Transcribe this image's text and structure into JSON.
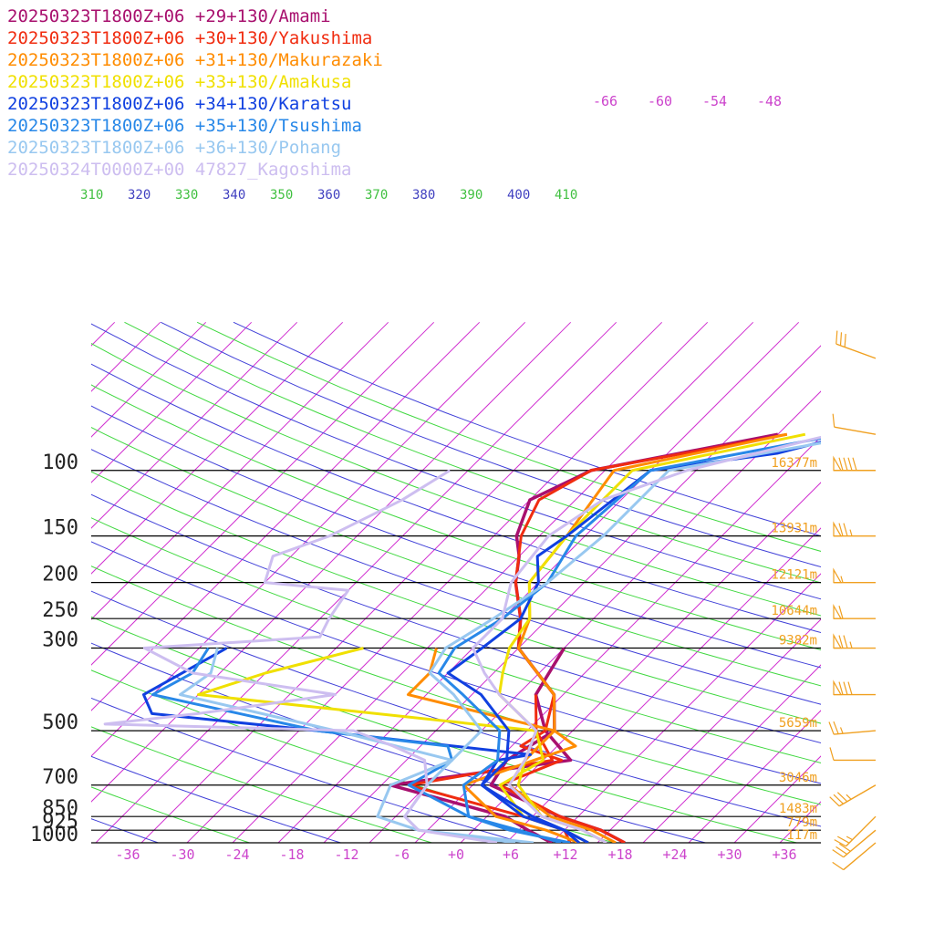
{
  "chart_data": {
    "type": "line",
    "title": "",
    "legend": [
      {
        "text": "20250323T1800Z+06 +29+130/Amami",
        "color": "#a8106e"
      },
      {
        "text": "20250323T1800Z+06 +30+130/Yakushima",
        "color": "#f02c10"
      },
      {
        "text": "20250323T1800Z+06 +31+130/Makurazaki",
        "color": "#ff8c00"
      },
      {
        "text": "20250323T1800Z+06 +33+130/Amakusa",
        "color": "#f0e000"
      },
      {
        "text": "20250323T1800Z+06 +34+130/Karatsu",
        "color": "#1040e0"
      },
      {
        "text": "20250323T1800Z+06 +35+130/Tsushima",
        "color": "#2888e8"
      },
      {
        "text": "20250323T1800Z+06 +36+130/Pohang",
        "color": "#98c8f0"
      },
      {
        "text": "20250324T0000Z+00 47827_Kagoshima",
        "color": "#cdbef0"
      }
    ],
    "pressure_ticks": [
      {
        "label": "100",
        "p": 100
      },
      {
        "label": "150",
        "p": 150
      },
      {
        "label": "200",
        "p": 200
      },
      {
        "label": "250",
        "p": 250
      },
      {
        "label": "300",
        "p": 300
      },
      {
        "label": "500",
        "p": 500
      },
      {
        "label": "700",
        "p": 700
      },
      {
        "label": "850",
        "p": 850
      },
      {
        "label": "925",
        "p": 925
      },
      {
        "label": "1000",
        "p": 1000
      }
    ],
    "temperature_ticks": [
      "-36",
      "-30",
      "-24",
      "-18",
      "-12",
      "-6",
      "+0",
      "+6",
      "+12",
      "+18",
      "+24",
      "+30",
      "+36"
    ],
    "theta_ticks": [
      {
        "label": "310",
        "color": "#40c040"
      },
      {
        "label": "320",
        "color": "#4040c0"
      },
      {
        "label": "330",
        "color": "#40c040"
      },
      {
        "label": "340",
        "color": "#4040c0"
      },
      {
        "label": "350",
        "color": "#40c040"
      },
      {
        "label": "360",
        "color": "#4040c0"
      },
      {
        "label": "370",
        "color": "#40c040"
      },
      {
        "label": "380",
        "color": "#4040c0"
      },
      {
        "label": "390",
        "color": "#40c040"
      },
      {
        "label": "400",
        "color": "#4040c0"
      },
      {
        "label": "410",
        "color": "#40c040"
      }
    ],
    "upper_temp_labels": [
      "-66",
      "-60",
      "-54",
      "-48"
    ],
    "height_labels": [
      {
        "label": "16377m",
        "p": 100
      },
      {
        "label": "13931m",
        "p": 150
      },
      {
        "label": "12121m",
        "p": 200
      },
      {
        "label": "10644m",
        "p": 250
      },
      {
        "label": "9382m",
        "p": 300
      },
      {
        "label": "5659m",
        "p": 500
      },
      {
        "label": "3046m",
        "p": 700
      },
      {
        "label": "1483m",
        "p": 850
      },
      {
        "label": "779m",
        "p": 925
      },
      {
        "label": "117m",
        "p": 1000
      }
    ],
    "series": [
      {
        "name": "20250323T1800Z+06 +29+130/Amami",
        "color": "#a8106e",
        "width": 3.5,
        "temperature": [
          [
            80,
            -10
          ],
          [
            100,
            -26.5
          ],
          [
            120,
            -30
          ],
          [
            150,
            -27.5
          ],
          [
            170,
            -25
          ],
          [
            200,
            -22.5
          ],
          [
            250,
            -18
          ],
          [
            300,
            -15
          ],
          [
            400,
            -6
          ],
          [
            500,
            -2
          ],
          [
            600,
            -4
          ],
          [
            700,
            -3
          ],
          [
            850,
            8
          ],
          [
            925,
            14
          ],
          [
            1000,
            18
          ]
        ],
        "dewpoint": [
          [
            300,
            -10
          ],
          [
            400,
            -8
          ],
          [
            500,
            -3
          ],
          [
            600,
            3
          ],
          [
            700,
            -14
          ],
          [
            800,
            -3
          ],
          [
            850,
            2
          ],
          [
            925,
            6
          ],
          [
            1000,
            10
          ]
        ]
      },
      {
        "name": "20250323T1800Z+06 +30+130/Yakushima",
        "color": "#f02c10",
        "width": 3,
        "temperature": [
          [
            80,
            -9
          ],
          [
            100,
            -26.5
          ],
          [
            120,
            -29
          ],
          [
            150,
            -27
          ],
          [
            200,
            -22.5
          ],
          [
            250,
            -18
          ],
          [
            300,
            -15
          ],
          [
            400,
            -6
          ],
          [
            500,
            -3
          ],
          [
            550,
            -4
          ],
          [
            600,
            2
          ],
          [
            700,
            -2
          ],
          [
            850,
            8
          ],
          [
            925,
            14
          ],
          [
            1000,
            18
          ]
        ],
        "dewpoint": [
          [
            400,
            -8
          ],
          [
            500,
            -4
          ],
          [
            600,
            1
          ],
          [
            700,
            -12
          ],
          [
            800,
            -1
          ],
          [
            850,
            4
          ],
          [
            925,
            10
          ],
          [
            1000,
            12
          ]
        ]
      },
      {
        "name": "20250323T1800Z+06 +31+130/Makurazaki",
        "color": "#ff8c00",
        "width": 3,
        "temperature": [
          [
            80,
            -9
          ],
          [
            100,
            -24
          ],
          [
            150,
            -22
          ],
          [
            200,
            -21
          ],
          [
            250,
            -17
          ],
          [
            300,
            -15
          ],
          [
            400,
            -6
          ],
          [
            500,
            -2
          ],
          [
            600,
            -2
          ],
          [
            700,
            -1
          ],
          [
            850,
            7
          ],
          [
            925,
            13
          ],
          [
            1000,
            17
          ]
        ],
        "dewpoint": [
          [
            300,
            -24
          ],
          [
            350,
            -22
          ],
          [
            400,
            -22
          ],
          [
            500,
            -2
          ],
          [
            550,
            2
          ],
          [
            600,
            -1
          ],
          [
            700,
            -6
          ],
          [
            850,
            1
          ],
          [
            925,
            8
          ],
          [
            1000,
            13
          ]
        ]
      },
      {
        "name": "20250323T1800Z+06 +33+130/Amakusa",
        "color": "#f0e000",
        "width": 3,
        "temperature": [
          [
            80,
            -7
          ],
          [
            100,
            -22
          ],
          [
            150,
            -22
          ],
          [
            200,
            -21
          ],
          [
            250,
            -17
          ],
          [
            300,
            -16
          ],
          [
            350,
            -14
          ],
          [
            400,
            -12
          ],
          [
            500,
            -4
          ],
          [
            600,
            -2
          ],
          [
            700,
            0
          ],
          [
            850,
            6
          ],
          [
            925,
            12
          ],
          [
            1000,
            16
          ]
        ],
        "dewpoint": [
          [
            300,
            -32
          ],
          [
            350,
            -40
          ],
          [
            400,
            -45
          ],
          [
            500,
            -4
          ],
          [
            600,
            0
          ],
          [
            700,
            -2
          ],
          [
            850,
            4
          ],
          [
            925,
            10
          ],
          [
            1000,
            14
          ]
        ]
      },
      {
        "name": "20250323T1800Z+06 +34+130/Karatsu",
        "color": "#1040e0",
        "width": 3,
        "temperature": [
          [
            80,
            -2
          ],
          [
            90,
            -8
          ],
          [
            100,
            -20
          ],
          [
            150,
            -22
          ],
          [
            170,
            -23
          ],
          [
            200,
            -20
          ],
          [
            250,
            -18
          ],
          [
            300,
            -19
          ],
          [
            350,
            -20
          ],
          [
            400,
            -14
          ],
          [
            500,
            -7
          ],
          [
            600,
            -4
          ],
          [
            700,
            -4
          ],
          [
            850,
            4
          ],
          [
            925,
            10
          ],
          [
            1000,
            14
          ]
        ],
        "dewpoint": [
          [
            300,
            -47
          ],
          [
            400,
            -51
          ],
          [
            450,
            -48
          ],
          [
            500,
            -28
          ],
          [
            580,
            -2
          ],
          [
            600,
            -5
          ],
          [
            700,
            -4
          ],
          [
            850,
            5
          ],
          [
            925,
            10
          ],
          [
            1000,
            13
          ]
        ]
      },
      {
        "name": "20250323T1800Z+06 +35+130/Tsushima",
        "color": "#2888e8",
        "width": 3,
        "temperature": [
          [
            80,
            -3
          ],
          [
            100,
            -20
          ],
          [
            150,
            -21
          ],
          [
            200,
            -19
          ],
          [
            250,
            -20
          ],
          [
            300,
            -22
          ],
          [
            350,
            -21
          ],
          [
            400,
            -16
          ],
          [
            500,
            -8
          ],
          [
            600,
            -5
          ],
          [
            700,
            -6
          ],
          [
            850,
            -2
          ],
          [
            925,
            4
          ],
          [
            1000,
            12
          ]
        ],
        "dewpoint": [
          [
            300,
            -49
          ],
          [
            350,
            -48
          ],
          [
            400,
            -50
          ],
          [
            500,
            -28
          ],
          [
            550,
            -12
          ],
          [
            600,
            -10
          ],
          [
            700,
            -12
          ],
          [
            850,
            -2
          ],
          [
            925,
            5
          ],
          [
            1000,
            11
          ]
        ]
      },
      {
        "name": "20250323T1800Z+06 +36+130/Pohang",
        "color": "#98c8f0",
        "width": 3,
        "temperature": [
          [
            80,
            0
          ],
          [
            100,
            -18
          ],
          [
            150,
            -18
          ],
          [
            200,
            -19
          ],
          [
            250,
            -21
          ],
          [
            300,
            -23
          ],
          [
            350,
            -22
          ],
          [
            400,
            -17
          ],
          [
            500,
            -10
          ],
          [
            600,
            -10
          ],
          [
            700,
            -10
          ],
          [
            850,
            -9
          ],
          [
            925,
            -6
          ],
          [
            1000,
            8
          ]
        ],
        "dewpoint": [
          [
            300,
            -48
          ],
          [
            350,
            -46
          ],
          [
            400,
            -47
          ],
          [
            500,
            -26
          ],
          [
            600,
            -10
          ],
          [
            700,
            -14
          ],
          [
            850,
            -12
          ],
          [
            925,
            -6
          ],
          [
            1000,
            6
          ]
        ]
      },
      {
        "name": "20250324T0000Z+00 47827_Kagoshima",
        "color": "#cdbef0",
        "width": 3,
        "temperature": [
          [
            80,
            -4
          ],
          [
            100,
            -16
          ],
          [
            120,
            -22
          ],
          [
            150,
            -24
          ],
          [
            200,
            -23
          ],
          [
            250,
            -20
          ],
          [
            300,
            -20
          ],
          [
            350,
            -16
          ],
          [
            400,
            -12
          ],
          [
            500,
            -4
          ],
          [
            600,
            -2
          ],
          [
            700,
            -1
          ],
          [
            850,
            6
          ],
          [
            925,
            12
          ],
          [
            1000,
            16
          ]
        ],
        "dewpoint": [
          [
            100,
            -42
          ],
          [
            120,
            -44
          ],
          [
            150,
            -48
          ],
          [
            170,
            -52
          ],
          [
            200,
            -50
          ],
          [
            210,
            -40
          ],
          [
            250,
            -39
          ],
          [
            280,
            -38
          ],
          [
            300,
            -56
          ],
          [
            350,
            -48
          ],
          [
            400,
            -30
          ],
          [
            450,
            -43
          ],
          [
            480,
            -52
          ],
          [
            500,
            -24
          ],
          [
            550,
            -18
          ],
          [
            600,
            -13
          ],
          [
            700,
            -10
          ],
          [
            850,
            -9
          ],
          [
            925,
            -6
          ],
          [
            1000,
            4
          ]
        ]
      }
    ],
    "wind_barbs": [
      {
        "p": 50,
        "direction": 290,
        "speed": 30
      },
      {
        "p": 80,
        "direction": 280,
        "speed": 10
      },
      {
        "p": 100,
        "direction": 270,
        "speed": 90
      },
      {
        "p": 150,
        "direction": 270,
        "speed": 75
      },
      {
        "p": 200,
        "direction": 270,
        "speed": 55
      },
      {
        "p": 250,
        "direction": 270,
        "speed": 60
      },
      {
        "p": 300,
        "direction": 270,
        "speed": 75
      },
      {
        "p": 400,
        "direction": 270,
        "speed": 80
      },
      {
        "p": 500,
        "direction": 265,
        "speed": 25
      },
      {
        "p": 600,
        "direction": 270,
        "speed": 10
      },
      {
        "p": 700,
        "direction": 240,
        "speed": 35
      },
      {
        "p": 850,
        "direction": 225,
        "speed": 25
      },
      {
        "p": 925,
        "direction": 230,
        "speed": 30
      },
      {
        "p": 1000,
        "direction": 230,
        "speed": 10
      }
    ]
  }
}
